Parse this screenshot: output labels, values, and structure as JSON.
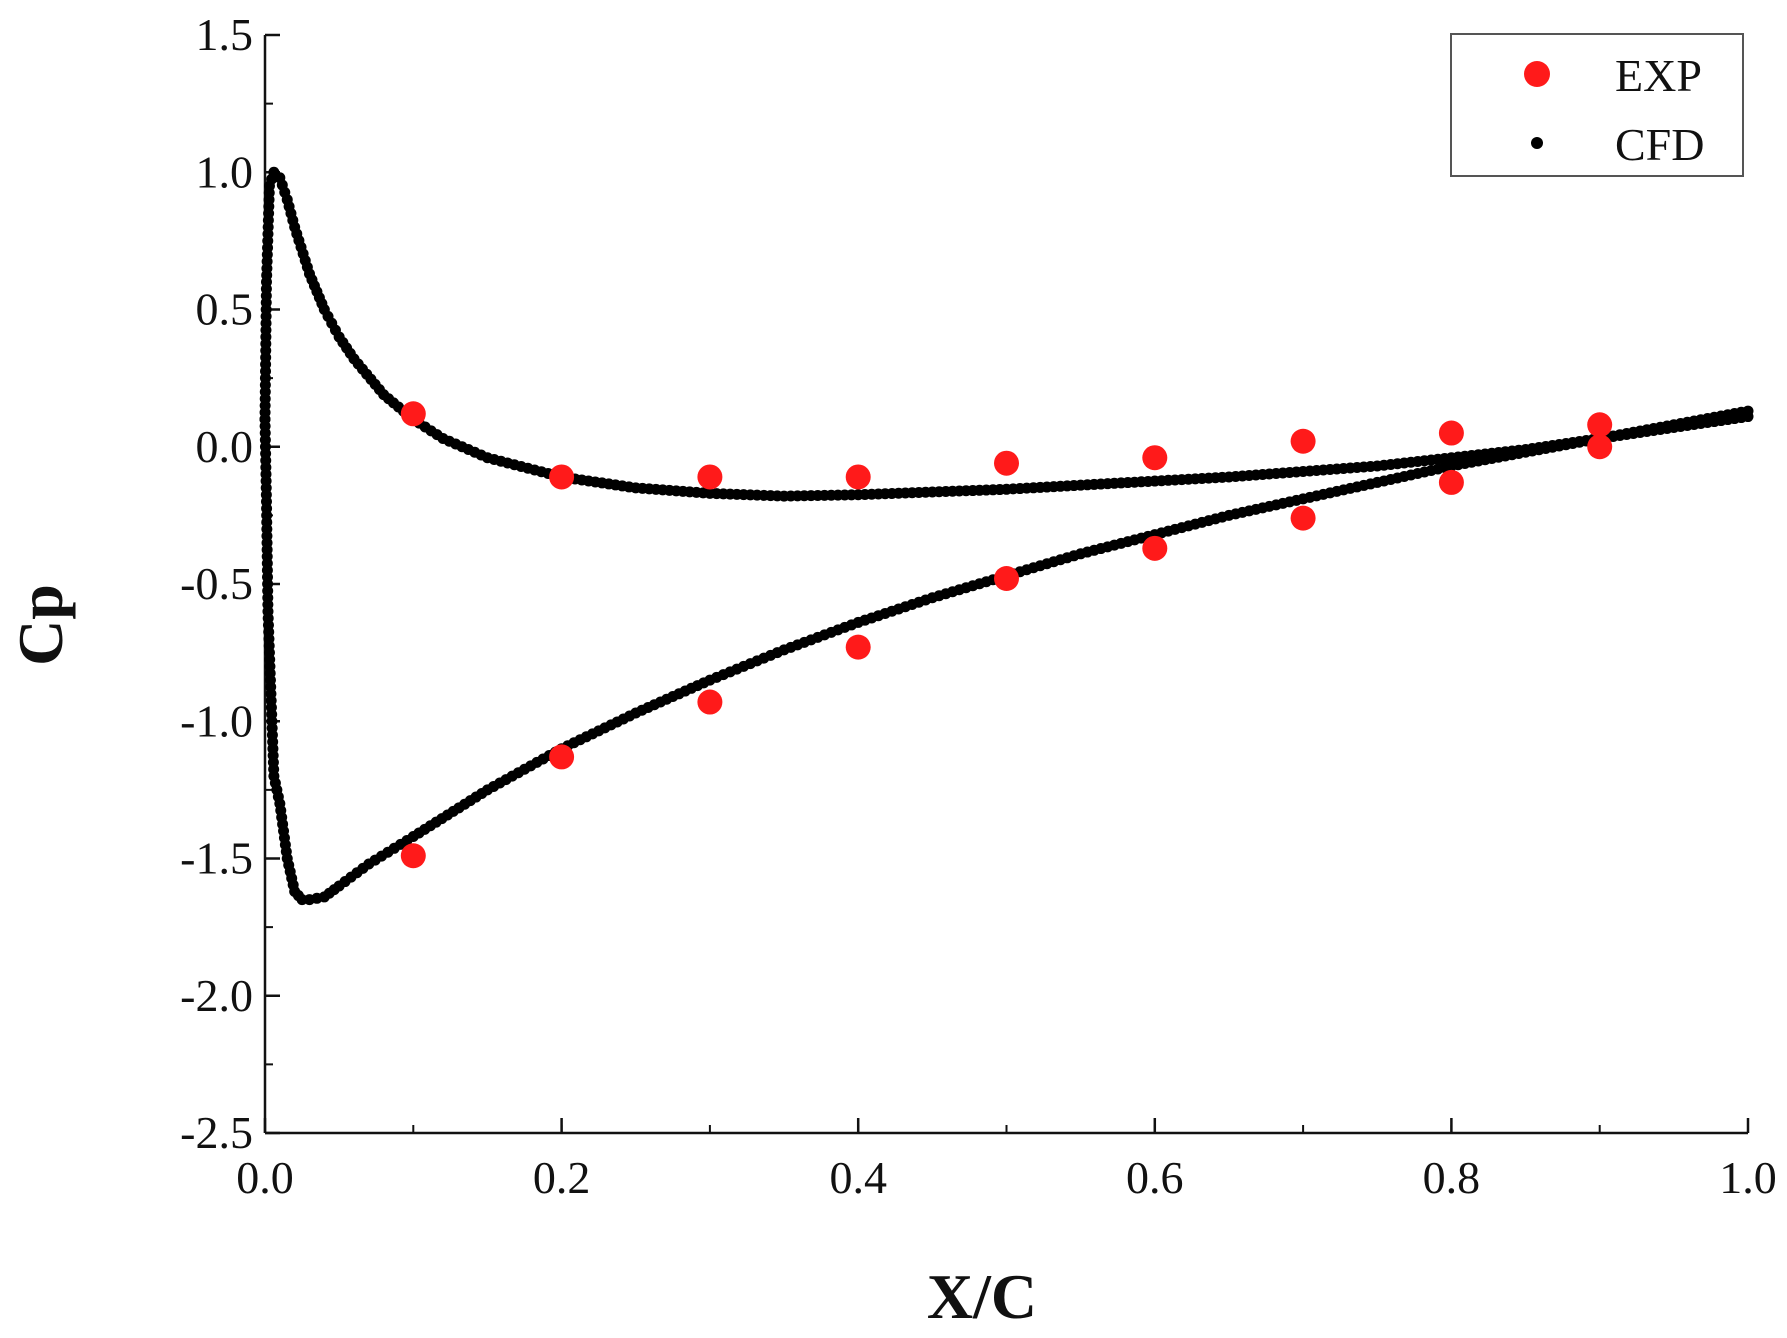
{
  "chart_data": {
    "type": "scatter",
    "title": "",
    "xlabel": "X/C",
    "ylabel": "Cp",
    "xlim": [
      0.0,
      1.0
    ],
    "ylim": [
      -2.5,
      1.5
    ],
    "x_ticks": [
      0.0,
      0.2,
      0.4,
      0.6,
      0.8,
      1.0
    ],
    "x_tick_labels": [
      "0.0",
      "0.2",
      "0.4",
      "0.6",
      "0.8",
      "1.0"
    ],
    "y_ticks": [
      1.5,
      1.0,
      0.5,
      0.0,
      -0.5,
      -1.0,
      -1.5,
      -2.0,
      -2.5
    ],
    "y_tick_labels": [
      "1.5",
      "1.0",
      "0.5",
      "0.0",
      "-0.5",
      "-1.0",
      "-1.5",
      "-2.0",
      "-2.5"
    ],
    "grid": false,
    "legend_position": "top-right",
    "series": [
      {
        "name": "EXP",
        "color": "#ff1a1a",
        "marker": "large-circle",
        "points": [
          [
            0.1,
            0.12
          ],
          [
            0.2,
            -0.11
          ],
          [
            0.3,
            -0.11
          ],
          [
            0.4,
            -0.11
          ],
          [
            0.5,
            -0.06
          ],
          [
            0.6,
            -0.04
          ],
          [
            0.7,
            0.02
          ],
          [
            0.8,
            0.05
          ],
          [
            0.9,
            0.08
          ],
          [
            0.1,
            -1.49
          ],
          [
            0.2,
            -1.13
          ],
          [
            0.3,
            -0.93
          ],
          [
            0.4,
            -0.73
          ],
          [
            0.5,
            -0.48
          ],
          [
            0.6,
            -0.37
          ],
          [
            0.7,
            -0.26
          ],
          [
            0.8,
            -0.13
          ],
          [
            0.9,
            0.0
          ]
        ]
      },
      {
        "name": "CFD",
        "color": "#000000",
        "marker": "small-dot",
        "upper_surface": [
          [
            0.0,
            0.1
          ],
          [
            0.001,
            0.6
          ],
          [
            0.003,
            0.95
          ],
          [
            0.006,
            1.0
          ],
          [
            0.01,
            0.98
          ],
          [
            0.015,
            0.9
          ],
          [
            0.02,
            0.8
          ],
          [
            0.03,
            0.63
          ],
          [
            0.04,
            0.5
          ],
          [
            0.05,
            0.4
          ],
          [
            0.06,
            0.32
          ],
          [
            0.08,
            0.19
          ],
          [
            0.1,
            0.1
          ],
          [
            0.12,
            0.03
          ],
          [
            0.15,
            -0.04
          ],
          [
            0.2,
            -0.11
          ],
          [
            0.25,
            -0.15
          ],
          [
            0.3,
            -0.17
          ],
          [
            0.35,
            -0.18
          ],
          [
            0.4,
            -0.175
          ],
          [
            0.45,
            -0.165
          ],
          [
            0.5,
            -0.155
          ],
          [
            0.55,
            -0.14
          ],
          [
            0.6,
            -0.125
          ],
          [
            0.65,
            -0.11
          ],
          [
            0.7,
            -0.09
          ],
          [
            0.75,
            -0.07
          ],
          [
            0.8,
            -0.04
          ],
          [
            0.85,
            -0.01
          ],
          [
            0.9,
            0.03
          ],
          [
            0.95,
            0.07
          ],
          [
            1.0,
            0.11
          ]
        ],
        "lower_surface": [
          [
            0.0,
            0.1
          ],
          [
            0.001,
            -0.2
          ],
          [
            0.002,
            -0.6
          ],
          [
            0.004,
            -0.9
          ],
          [
            0.006,
            -1.2
          ],
          [
            0.01,
            -1.3
          ],
          [
            0.015,
            -1.5
          ],
          [
            0.02,
            -1.62
          ],
          [
            0.025,
            -1.65
          ],
          [
            0.03,
            -1.65
          ],
          [
            0.04,
            -1.64
          ],
          [
            0.05,
            -1.6
          ],
          [
            0.07,
            -1.52
          ],
          [
            0.1,
            -1.42
          ],
          [
            0.15,
            -1.25
          ],
          [
            0.2,
            -1.1
          ],
          [
            0.25,
            -0.97
          ],
          [
            0.3,
            -0.85
          ],
          [
            0.35,
            -0.74
          ],
          [
            0.4,
            -0.64
          ],
          [
            0.45,
            -0.55
          ],
          [
            0.5,
            -0.47
          ],
          [
            0.55,
            -0.39
          ],
          [
            0.6,
            -0.32
          ],
          [
            0.65,
            -0.25
          ],
          [
            0.7,
            -0.19
          ],
          [
            0.75,
            -0.13
          ],
          [
            0.8,
            -0.07
          ],
          [
            0.85,
            -0.02
          ],
          [
            0.9,
            0.03
          ],
          [
            0.95,
            0.08
          ],
          [
            1.0,
            0.13
          ]
        ]
      }
    ]
  }
}
